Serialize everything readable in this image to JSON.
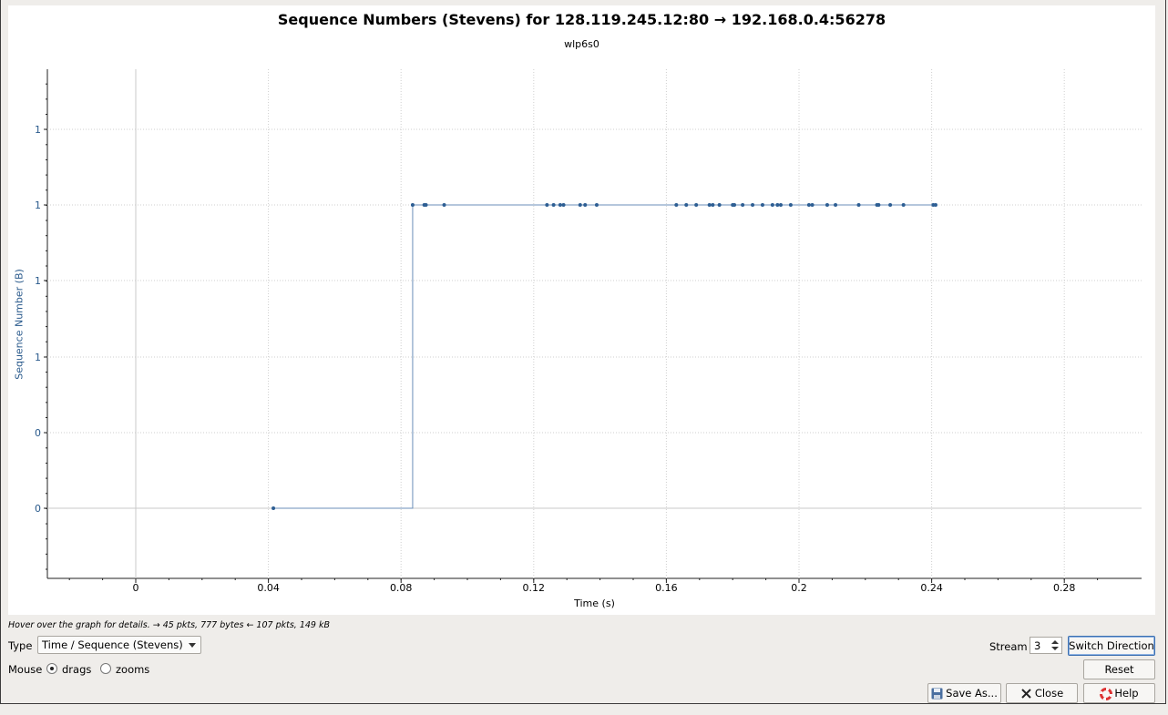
{
  "chart_data": {
    "type": "scatter",
    "title": "Sequence Numbers (Stevens) for 128.119.245.12:80 → 192.168.0.4:56278",
    "subtitle": "wlp6s0",
    "xlabel": "Time (s)",
    "ylabel": "Sequence Number (B)",
    "xlim": [
      -0.027,
      0.302
    ],
    "x_ticks": [
      "0",
      "0.04",
      "0.08",
      "0.12",
      "0.16",
      "0.2",
      "0.24",
      "0.28"
    ],
    "y_ticks": [
      "0",
      "0",
      "1",
      "1",
      "1",
      "1"
    ],
    "grid": true,
    "color": "#2d5e93",
    "series": [
      {
        "points": [
          {
            "x": 0.0415,
            "y": 0
          },
          {
            "x": 0.0835,
            "y": 1
          },
          {
            "x": 0.087,
            "y": 1
          },
          {
            "x": 0.0875,
            "y": 1
          },
          {
            "x": 0.093,
            "y": 1
          },
          {
            "x": 0.124,
            "y": 1
          },
          {
            "x": 0.126,
            "y": 1
          },
          {
            "x": 0.128,
            "y": 1
          },
          {
            "x": 0.129,
            "y": 1
          },
          {
            "x": 0.134,
            "y": 1
          },
          {
            "x": 0.1355,
            "y": 1
          },
          {
            "x": 0.139,
            "y": 1
          },
          {
            "x": 0.163,
            "y": 1
          },
          {
            "x": 0.166,
            "y": 1
          },
          {
            "x": 0.169,
            "y": 1
          },
          {
            "x": 0.173,
            "y": 1
          },
          {
            "x": 0.174,
            "y": 1
          },
          {
            "x": 0.176,
            "y": 1
          },
          {
            "x": 0.18,
            "y": 1
          },
          {
            "x": 0.1805,
            "y": 1
          },
          {
            "x": 0.183,
            "y": 1
          },
          {
            "x": 0.186,
            "y": 1
          },
          {
            "x": 0.189,
            "y": 1
          },
          {
            "x": 0.192,
            "y": 1
          },
          {
            "x": 0.1935,
            "y": 1
          },
          {
            "x": 0.1945,
            "y": 1
          },
          {
            "x": 0.1975,
            "y": 1
          },
          {
            "x": 0.203,
            "y": 1
          },
          {
            "x": 0.204,
            "y": 1
          },
          {
            "x": 0.2085,
            "y": 1
          },
          {
            "x": 0.211,
            "y": 1
          },
          {
            "x": 0.218,
            "y": 1
          },
          {
            "x": 0.2235,
            "y": 1
          },
          {
            "x": 0.224,
            "y": 1
          },
          {
            "x": 0.2275,
            "y": 1
          },
          {
            "x": 0.2315,
            "y": 1
          },
          {
            "x": 0.2405,
            "y": 1
          },
          {
            "x": 0.2412,
            "y": 1
          }
        ]
      }
    ]
  },
  "status": "Hover over the graph for details. → 45 pkts, 777 bytes ← 107 pkts, 149 kB",
  "controls": {
    "type_label": "Type",
    "type_value": "Time / Sequence (Stevens)",
    "mouse_label": "Mouse",
    "drags_label": "drags",
    "zooms_label": "zooms",
    "mouse_mode": "drags",
    "stream_label": "Stream",
    "stream_value": "3",
    "switch_direction": "Switch Direction",
    "reset": "Reset",
    "save_as": "Save As...",
    "close": "Close",
    "help": "Help"
  }
}
